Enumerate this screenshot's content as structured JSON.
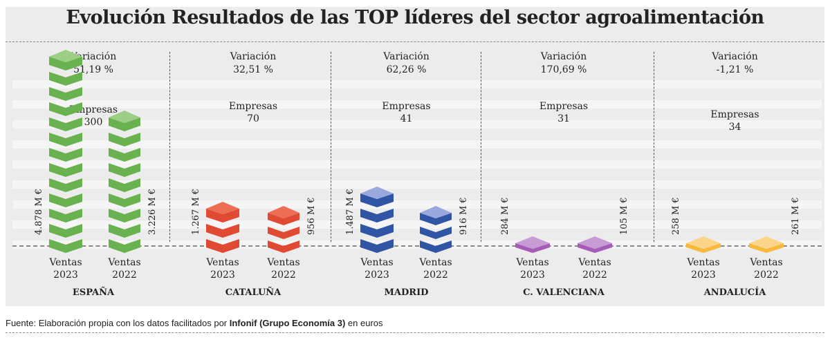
{
  "chart_data": {
    "type": "bar",
    "title": "Evolución Resultados de las TOP líderes del sector agroalimentación",
    "categories": [
      "Ventas 2023",
      "Ventas 2022"
    ],
    "regions": [
      {
        "name": "ESPAÑA",
        "variacion": "51,19 %",
        "empresas": "300",
        "values": [
          4878,
          3226
        ],
        "labels": [
          "4.878 M €",
          "3.226 M €"
        ],
        "color": "#6ab24f",
        "top": "#9ccf85"
      },
      {
        "name": "CATALUÑA",
        "variacion": "32,51 %",
        "empresas": "70",
        "values": [
          1267,
          956
        ],
        "labels": [
          "1.267 M €",
          "956 M €"
        ],
        "color": "#e04a32",
        "top": "#ee6e55"
      },
      {
        "name": "MADRID",
        "variacion": "62,26 %",
        "empresas": "41",
        "values": [
          1487,
          916
        ],
        "labels": [
          "1.487 M €",
          "916 M €"
        ],
        "color": "#2f55a4",
        "top": "#9aa9dd"
      },
      {
        "name": "C. VALENCIANA",
        "variacion": "170,69 %",
        "empresas": "31",
        "values": [
          284,
          105
        ],
        "labels": [
          "284 M €",
          "105 M €"
        ],
        "color": "#a45cb6",
        "top": "#c79bd4"
      },
      {
        "name": "ANDALUCÍA",
        "variacion": "-1,21 %",
        "empresas": "34",
        "values": [
          258,
          261
        ],
        "labels": [
          "258 M €",
          "261 M €"
        ],
        "color": "#f6b93b",
        "top": "#fbd68a"
      }
    ],
    "variacion_label": "Variación",
    "empresas_label": "Empresas",
    "ventas_label": "Ventas",
    "years": [
      "2023",
      "2022"
    ],
    "unit": "M €"
  },
  "source": {
    "prefix": "Fuente: Elaboración propia con los datos facilitados por ",
    "bold": "Infonif (Grupo Economía 3)",
    "suffix": " en euros"
  }
}
